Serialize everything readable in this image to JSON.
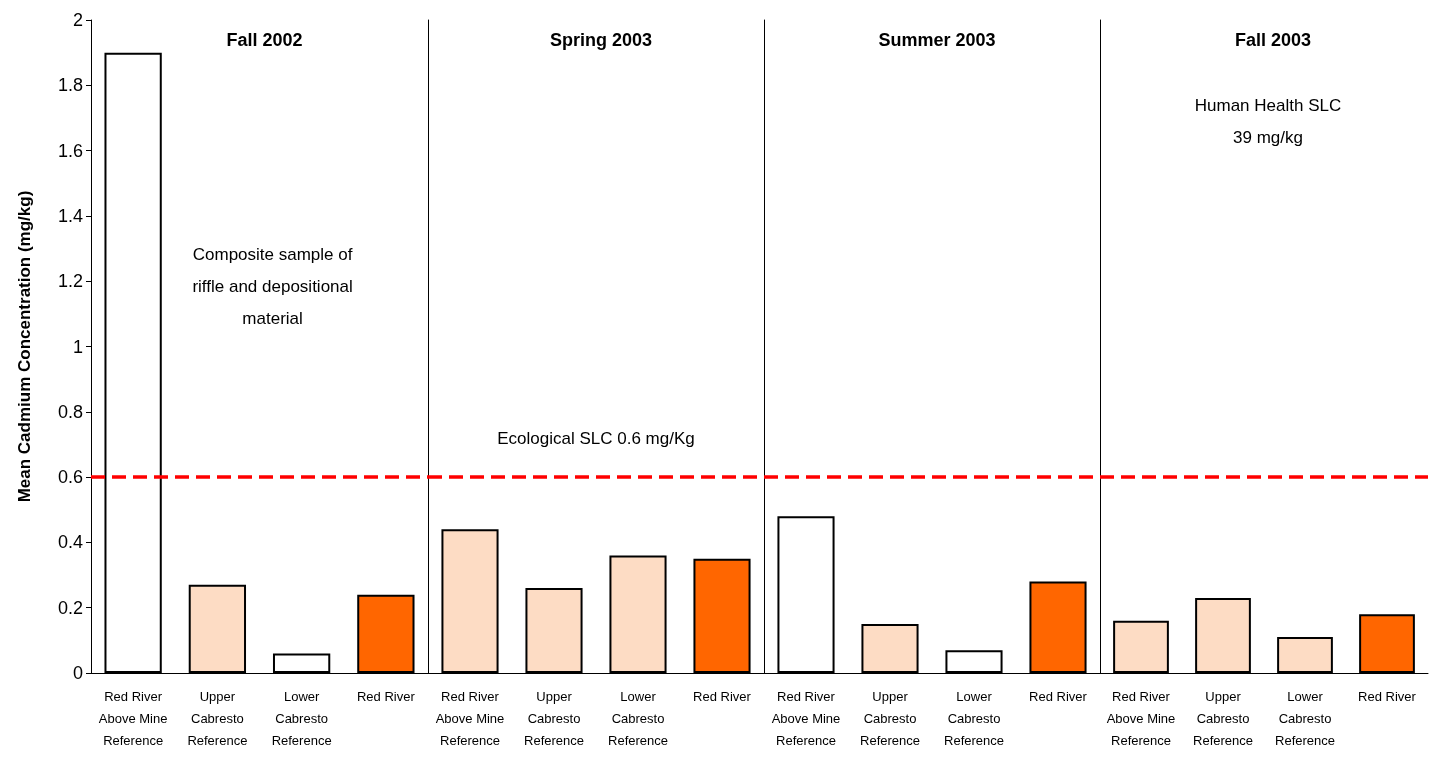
{
  "chart_data": [
    {
      "type": "bar",
      "title": "Fall 2002",
      "ylabel": "Mean Cadmium Concentration (mg/kg)",
      "categories": [
        "Red River\nAbove Mine\nReference",
        "Upper\nCabresto\nReference",
        "Lower\nCabresto\nReference",
        "Red River"
      ],
      "values": [
        1.9,
        0.27,
        0.06,
        0.24
      ],
      "colors": [
        "#ffffff",
        "#fddcc4",
        "#ffffff",
        "#ff6600"
      ],
      "ylim": [
        0,
        2
      ],
      "yticks": [
        0,
        0.2,
        0.4,
        0.6,
        0.8,
        1,
        1.2,
        1.4,
        1.6,
        1.8,
        2
      ],
      "grid": false,
      "ref_lines": [
        {
          "axis": "y",
          "value": 0.6,
          "color": "#ff0000",
          "line_style": "dashed"
        }
      ],
      "annotations": [
        "Composite sample of\nriffle and depositional\nmaterial"
      ]
    },
    {
      "type": "bar",
      "title": "Spring 2003",
      "categories": [
        "Red River\nAbove Mine\nReference",
        "Upper\nCabresto\nReference",
        "Lower\nCabresto\nReference",
        "Red River"
      ],
      "values": [
        0.44,
        0.26,
        0.36,
        0.35
      ],
      "colors": [
        "#fddcc4",
        "#fddcc4",
        "#fddcc4",
        "#ff6600"
      ],
      "ylim": [
        0,
        2
      ],
      "tick_labels": "x",
      "grid": false,
      "ref_lines": [
        {
          "axis": "y",
          "value": 0.6,
          "label": "Ecological SLC 0.6 mg/Kg",
          "color": "#ff0000",
          "line_style": "dashed"
        }
      ]
    },
    {
      "type": "bar",
      "title": "Summer 2003",
      "categories": [
        "Red River\nAbove Mine\nReference",
        "Upper\nCabresto\nReference",
        "Lower\nCabresto\nReference",
        "Red River"
      ],
      "values": [
        0.48,
        0.15,
        0.07,
        0.28
      ],
      "colors": [
        "#ffffff",
        "#fddcc4",
        "#ffffff",
        "#ff6600"
      ],
      "ylim": [
        0,
        2
      ],
      "tick_labels": "x",
      "grid": false,
      "ref_lines": [
        {
          "axis": "y",
          "value": 0.6,
          "color": "#ff0000",
          "line_style": "dashed"
        }
      ]
    },
    {
      "type": "bar",
      "title": "Fall 2003",
      "categories": [
        "Red River\nAbove Mine\nReference",
        "Upper\nCabresto\nReference",
        "Lower\nCabresto\nReference",
        "Red River"
      ],
      "values": [
        0.16,
        0.23,
        0.11,
        0.18
      ],
      "colors": [
        "#fddcc4",
        "#fddcc4",
        "#fddcc4",
        "#ff6600"
      ],
      "ylim": [
        0,
        2
      ],
      "tick_labels": "x",
      "grid": false,
      "ref_lines": [
        {
          "axis": "y",
          "value": 0.6,
          "color": "#ff0000",
          "line_style": "dashed"
        }
      ],
      "annotations": [
        "Human Health SLC\n39 mg/kg"
      ]
    }
  ]
}
